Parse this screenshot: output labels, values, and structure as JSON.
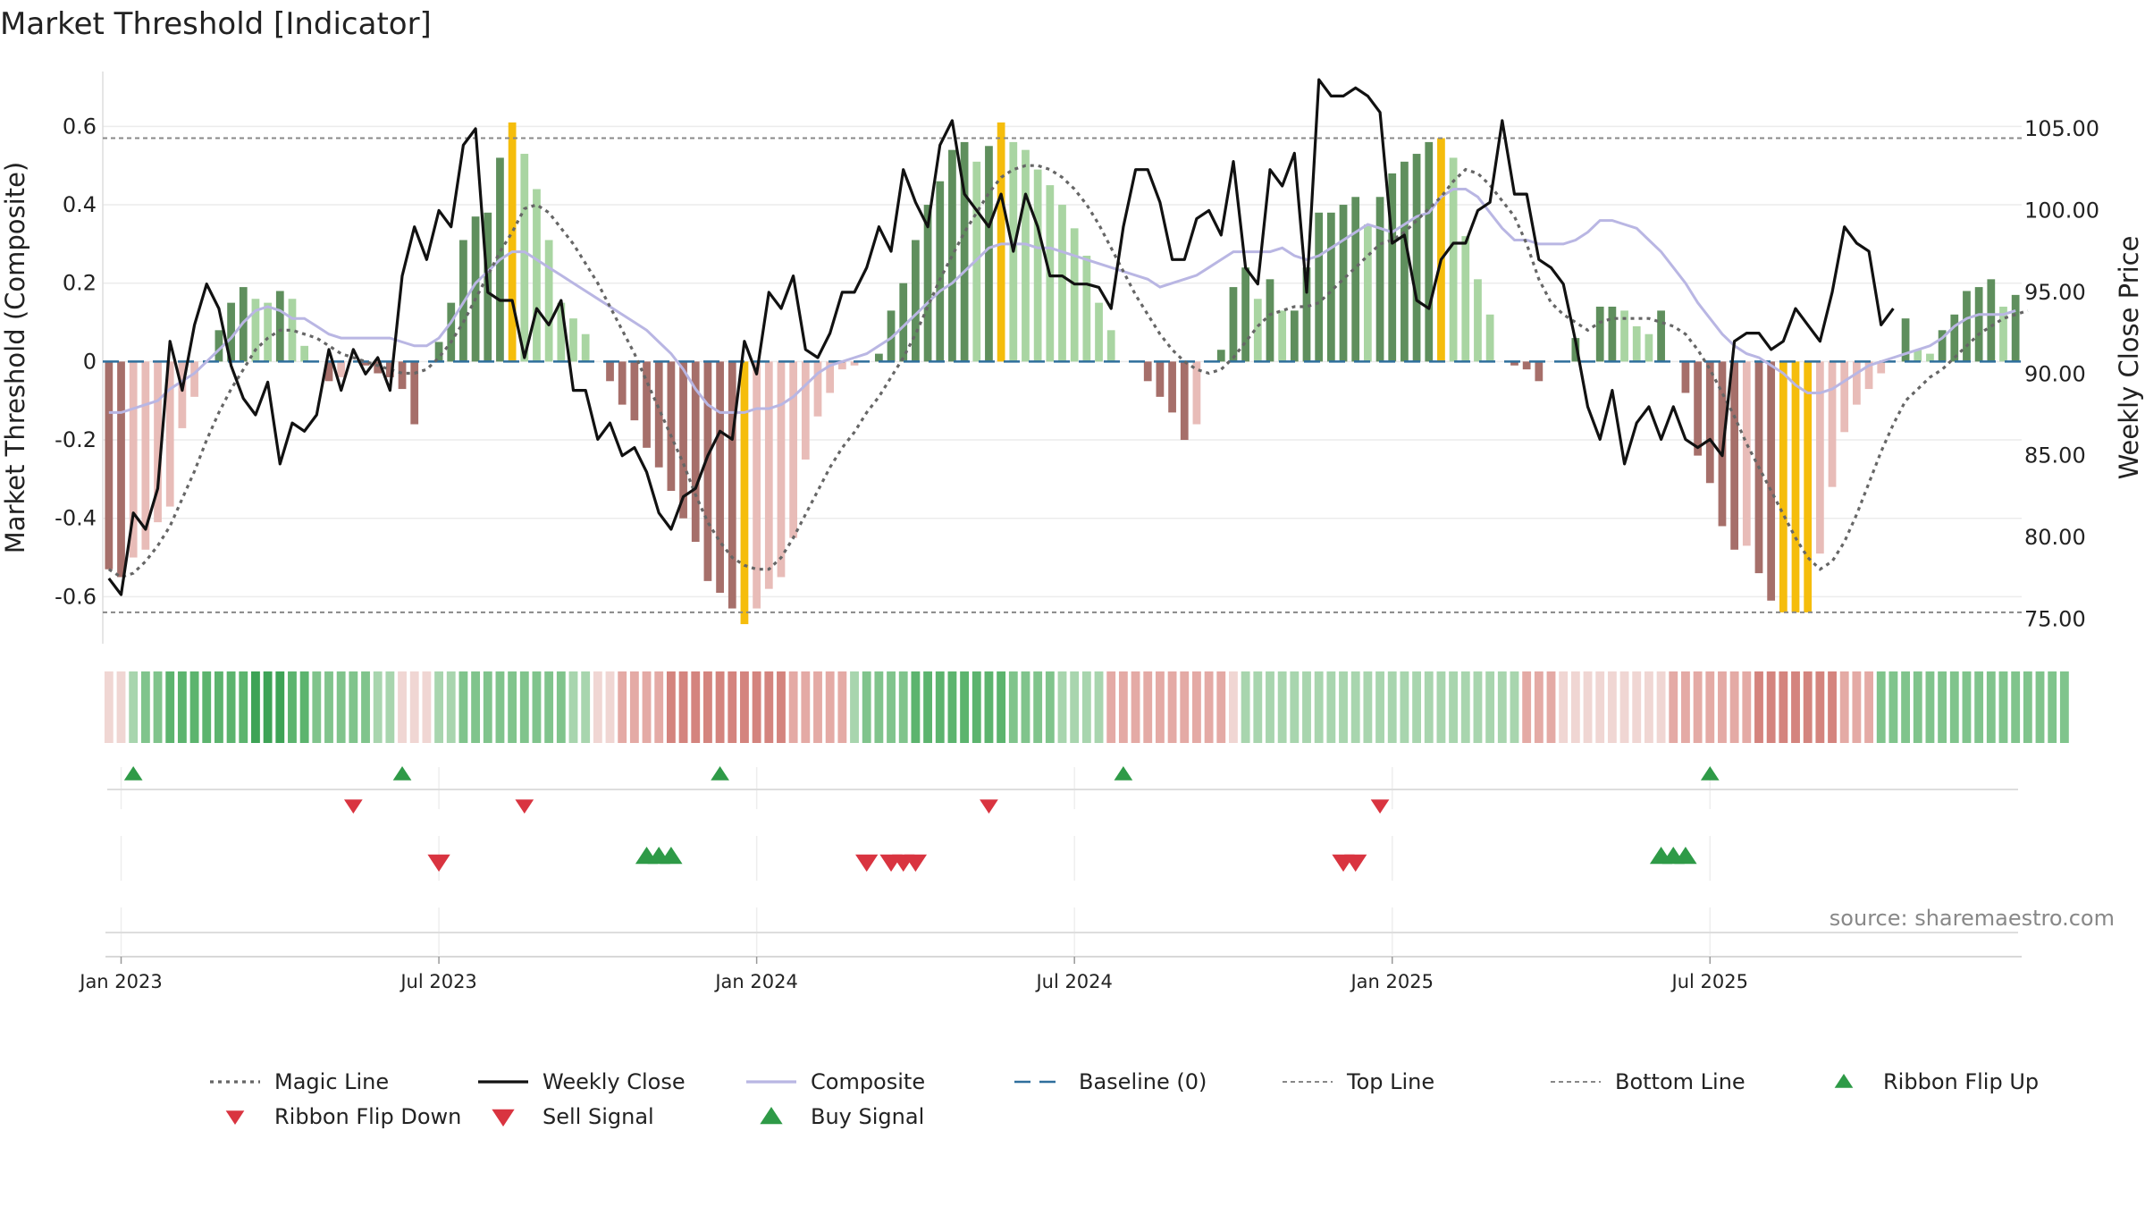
{
  "chart_data": {
    "type": "bar",
    "title": "Market Threshold [Indicator]",
    "ylabel": "Market Threshold (Composite)",
    "y2label": "Weekly Close Price",
    "source": "source: sharemaestro.com",
    "ylim": [
      -0.72,
      0.74
    ],
    "y2lim": [
      73.5,
      108.5
    ],
    "yticks": [
      "0.6",
      "0.4",
      "0.2",
      "0",
      "-0.2",
      "-0.4",
      "-0.6"
    ],
    "yticks_values": [
      0.6,
      0.4,
      0.2,
      0,
      -0.2,
      -0.4,
      -0.6
    ],
    "y2ticks": [
      "105.00",
      "100.00",
      "95.00",
      "90.00",
      "85.00",
      "80.00",
      "75.00"
    ],
    "y2ticks_values": [
      105,
      100,
      95,
      90,
      85,
      80,
      75
    ],
    "xticks": [
      "Jan 2023",
      "Jul 2023",
      "Jan 2024",
      "Jul 2024",
      "Jan 2025",
      "Jul 2025"
    ],
    "xticks_index": [
      1.5,
      27.5,
      53.5,
      79.5,
      105.5,
      131.5
    ],
    "top_line": 0.57,
    "bottom_line": -0.64,
    "colors": {
      "strong_up": "#5f8f5d",
      "weak_up": "#a9d5a2",
      "strong_down": "#a66f6a",
      "weak_down": "#e8bcb8",
      "extreme": "#f5bd0c",
      "close": "#111111",
      "composite": "#b9b6e3",
      "magic": "#666666",
      "baseline": "#2f6f9c",
      "buy": "#2e9a47",
      "sell": "#d93440"
    },
    "composite_bars": [
      -0.53,
      -0.55,
      -0.5,
      -0.48,
      -0.41,
      -0.37,
      -0.17,
      -0.09,
      0.0,
      0.08,
      0.15,
      0.19,
      0.16,
      0.15,
      0.18,
      0.16,
      0.04,
      0.0,
      -0.05,
      -0.04,
      0.0,
      -0.01,
      -0.03,
      -0.04,
      -0.07,
      -0.16,
      0.0,
      0.05,
      0.15,
      0.31,
      0.37,
      0.38,
      0.52,
      0.61,
      0.53,
      0.44,
      0.31,
      0.15,
      0.11,
      0.07,
      0.0,
      -0.05,
      -0.11,
      -0.15,
      -0.22,
      -0.27,
      -0.33,
      -0.4,
      -0.46,
      -0.56,
      -0.59,
      -0.63,
      -0.67,
      -0.63,
      -0.58,
      -0.55,
      -0.45,
      -0.25,
      -0.14,
      -0.08,
      -0.02,
      -0.01,
      0.0,
      0.02,
      0.13,
      0.2,
      0.31,
      0.4,
      0.46,
      0.54,
      0.56,
      0.51,
      0.55,
      0.61,
      0.56,
      0.54,
      0.49,
      0.45,
      0.4,
      0.34,
      0.27,
      0.15,
      0.08,
      0.0,
      0.0,
      -0.05,
      -0.09,
      -0.13,
      -0.2,
      -0.16,
      0.0,
      0.03,
      0.19,
      0.24,
      0.16,
      0.21,
      0.13,
      0.13,
      0.24,
      0.38,
      0.38,
      0.4,
      0.42,
      0.35,
      0.42,
      0.48,
      0.51,
      0.53,
      0.56,
      0.57,
      0.52,
      0.32,
      0.21,
      0.12,
      0.0,
      -0.01,
      -0.02,
      -0.05,
      0.0,
      0.0,
      0.06,
      0.0,
      0.14,
      0.14,
      0.13,
      0.09,
      0.07,
      0.13,
      0.0,
      -0.08,
      -0.24,
      -0.31,
      -0.42,
      -0.48,
      -0.47,
      -0.54,
      -0.61,
      -0.64,
      -0.64,
      -0.64,
      -0.49,
      -0.32,
      -0.18,
      -0.11,
      -0.07,
      -0.03,
      0.0,
      0.11,
      0.03,
      0.02,
      0.08,
      0.12,
      0.18,
      0.19,
      0.21,
      0.14,
      0.17
    ],
    "composite_line": [
      -0.13,
      -0.13,
      -0.12,
      -0.11,
      -0.1,
      -0.07,
      -0.05,
      -0.03,
      0.0,
      0.03,
      0.06,
      0.1,
      0.13,
      0.14,
      0.13,
      0.11,
      0.11,
      0.09,
      0.07,
      0.06,
      0.06,
      0.06,
      0.06,
      0.06,
      0.05,
      0.04,
      0.04,
      0.06,
      0.1,
      0.15,
      0.2,
      0.23,
      0.26,
      0.28,
      0.28,
      0.26,
      0.24,
      0.22,
      0.2,
      0.18,
      0.16,
      0.14,
      0.12,
      0.1,
      0.08,
      0.05,
      0.02,
      -0.02,
      -0.07,
      -0.11,
      -0.13,
      -0.13,
      -0.13,
      -0.12,
      -0.12,
      -0.11,
      -0.09,
      -0.06,
      -0.03,
      -0.01,
      0.0,
      0.01,
      0.02,
      0.04,
      0.06,
      0.09,
      0.12,
      0.15,
      0.18,
      0.2,
      0.23,
      0.26,
      0.29,
      0.3,
      0.3,
      0.3,
      0.29,
      0.29,
      0.28,
      0.27,
      0.26,
      0.25,
      0.24,
      0.23,
      0.22,
      0.21,
      0.19,
      0.2,
      0.21,
      0.22,
      0.24,
      0.26,
      0.28,
      0.28,
      0.28,
      0.28,
      0.29,
      0.27,
      0.26,
      0.27,
      0.29,
      0.31,
      0.33,
      0.35,
      0.34,
      0.33,
      0.35,
      0.37,
      0.38,
      0.42,
      0.44,
      0.44,
      0.42,
      0.38,
      0.34,
      0.31,
      0.31,
      0.3,
      0.3,
      0.3,
      0.31,
      0.33,
      0.36,
      0.36,
      0.35,
      0.34,
      0.31,
      0.28,
      0.24,
      0.2,
      0.15,
      0.11,
      0.07,
      0.04,
      0.02,
      0.01,
      -0.01,
      -0.03,
      -0.06,
      -0.08,
      -0.08,
      -0.07,
      -0.05,
      -0.03,
      -0.01,
      0.0,
      0.01,
      0.02,
      0.03,
      0.04,
      0.06,
      0.09,
      0.11,
      0.12,
      0.12,
      0.12,
      0.13
    ],
    "magic_line": [
      -0.53,
      -0.55,
      -0.54,
      -0.51,
      -0.47,
      -0.42,
      -0.35,
      -0.28,
      -0.2,
      -0.13,
      -0.07,
      -0.02,
      0.03,
      0.06,
      0.08,
      0.08,
      0.07,
      0.06,
      0.04,
      0.02,
      0.01,
      0.0,
      -0.01,
      -0.02,
      -0.03,
      -0.03,
      -0.02,
      0.01,
      0.05,
      0.1,
      0.16,
      0.22,
      0.28,
      0.33,
      0.39,
      0.4,
      0.38,
      0.34,
      0.3,
      0.25,
      0.2,
      0.14,
      0.08,
      0.02,
      -0.05,
      -0.12,
      -0.19,
      -0.26,
      -0.34,
      -0.41,
      -0.46,
      -0.5,
      -0.52,
      -0.53,
      -0.53,
      -0.5,
      -0.45,
      -0.39,
      -0.33,
      -0.27,
      -0.22,
      -0.18,
      -0.13,
      -0.09,
      -0.04,
      0.01,
      0.07,
      0.14,
      0.21,
      0.27,
      0.33,
      0.38,
      0.43,
      0.47,
      0.49,
      0.5,
      0.5,
      0.49,
      0.47,
      0.44,
      0.4,
      0.35,
      0.29,
      0.23,
      0.17,
      0.12,
      0.07,
      0.03,
      0.0,
      -0.02,
      -0.03,
      -0.02,
      0.01,
      0.05,
      0.09,
      0.12,
      0.13,
      0.14,
      0.14,
      0.15,
      0.18,
      0.21,
      0.24,
      0.27,
      0.3,
      0.31,
      0.33,
      0.36,
      0.39,
      0.42,
      0.46,
      0.49,
      0.48,
      0.45,
      0.41,
      0.37,
      0.3,
      0.21,
      0.15,
      0.12,
      0.1,
      0.08,
      0.1,
      0.11,
      0.11,
      0.11,
      0.11,
      0.1,
      0.09,
      0.07,
      0.03,
      -0.02,
      -0.08,
      -0.14,
      -0.21,
      -0.27,
      -0.33,
      -0.39,
      -0.45,
      -0.5,
      -0.53,
      -0.51,
      -0.46,
      -0.39,
      -0.31,
      -0.23,
      -0.16,
      -0.1,
      -0.07,
      -0.04,
      -0.02,
      0.01,
      0.04,
      0.07,
      0.09,
      0.11,
      0.12,
      0.13
    ],
    "weekly_close": [
      77.5,
      76.5,
      81.5,
      80.5,
      83,
      92,
      89,
      93,
      95.5,
      94,
      90.5,
      88.5,
      87.5,
      89.5,
      84.5,
      87,
      86.5,
      87.5,
      91.5,
      89,
      91.5,
      90,
      91,
      89,
      96,
      99,
      97,
      100,
      99,
      104,
      105,
      95,
      94.5,
      94.5,
      91,
      94,
      93,
      94.5,
      89,
      89,
      86,
      87,
      85,
      85.5,
      84,
      81.5,
      80.5,
      82.5,
      83,
      85,
      86.5,
      86,
      92,
      90,
      95,
      94,
      96,
      91.5,
      91,
      92.5,
      95,
      95,
      96.5,
      99,
      97.5,
      102.5,
      100.5,
      99,
      104,
      105.5,
      101,
      100,
      99,
      101,
      97.5,
      101,
      99,
      96,
      96,
      95.5,
      95.5,
      95.3,
      94,
      99,
      102.5,
      102.5,
      100.5,
      97,
      97,
      99.5,
      100,
      98.5,
      103,
      96.5,
      95.5,
      102.5,
      101.5,
      103.5,
      95,
      108,
      107,
      107,
      107.5,
      107,
      106,
      98,
      98.5,
      94.5,
      94,
      97,
      98,
      98,
      100,
      100.5,
      105.5,
      101,
      101,
      97,
      96.5,
      95.5,
      92,
      88,
      86,
      89,
      84.5,
      87,
      88,
      86,
      88,
      86,
      85.5,
      86,
      85,
      92,
      92.5,
      92.5,
      91.5,
      92,
      94,
      93,
      92,
      95,
      99,
      98,
      97.5,
      93,
      94
    ],
    "ribbon": [
      -1,
      -1,
      1,
      2,
      2,
      3,
      3,
      3,
      3,
      3,
      3,
      3,
      4,
      4,
      4,
      3,
      3,
      2,
      2,
      2,
      2,
      2,
      1,
      1,
      -1,
      -1,
      -1,
      1,
      1,
      2,
      2,
      2,
      2,
      2,
      2,
      2,
      2,
      2,
      1,
      1,
      -1,
      -1,
      -2,
      -2,
      -2,
      -2,
      -3,
      -3,
      -3,
      -3,
      -3,
      -3,
      -3,
      -3,
      -3,
      -3,
      -2,
      -2,
      -2,
      -2,
      -2,
      1,
      2,
      2,
      2,
      2,
      3,
      3,
      3,
      3,
      3,
      3,
      3,
      3,
      2,
      2,
      2,
      2,
      1,
      1,
      1,
      1,
      -2,
      -2,
      -2,
      -2,
      -2,
      -2,
      -2,
      -2,
      -2,
      -2,
      -1,
      1,
      1,
      1,
      1,
      1,
      1,
      1,
      1,
      1,
      1,
      1,
      1,
      1,
      1,
      1,
      1,
      1,
      1,
      1,
      1,
      1,
      1,
      1,
      -2,
      -2,
      -2,
      -1,
      -1,
      -1,
      -1,
      -1,
      -1,
      -1,
      -1,
      -1,
      -2,
      -2,
      -2,
      -2,
      -2,
      -2,
      -2,
      -3,
      -3,
      -3,
      -3,
      -3,
      -3,
      -3,
      -2,
      -2,
      -2,
      2,
      2,
      2,
      2,
      2,
      2,
      2,
      2,
      2,
      2,
      2,
      2,
      2,
      2,
      2,
      2
    ],
    "flip_up": [
      2,
      24,
      50,
      83,
      131
    ],
    "flip_down": [
      20,
      34,
      72,
      104
    ],
    "buy_signals": [
      44,
      45,
      46,
      127,
      128,
      129
    ],
    "sell_signals": [
      27,
      62,
      64,
      65,
      66,
      101,
      102
    ],
    "legend": [
      {
        "key": "magic",
        "label": "Magic Line"
      },
      {
        "key": "close",
        "label": "Weekly Close"
      },
      {
        "key": "composite",
        "label": "Composite"
      },
      {
        "key": "baseline",
        "label": "Baseline (0)"
      },
      {
        "key": "top",
        "label": "Top Line"
      },
      {
        "key": "bottom",
        "label": "Bottom Line"
      },
      {
        "key": "flipup",
        "label": "Ribbon Flip Up"
      },
      {
        "key": "flipdown",
        "label": "Ribbon Flip Down"
      },
      {
        "key": "sell",
        "label": "Sell Signal"
      },
      {
        "key": "buy",
        "label": "Buy Signal"
      }
    ]
  }
}
